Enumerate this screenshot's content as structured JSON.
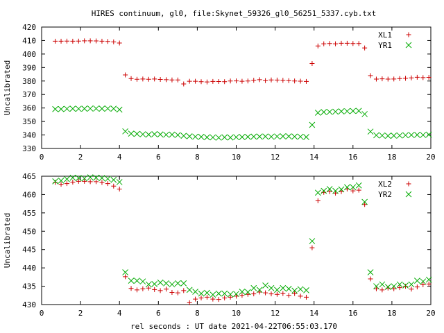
{
  "title": "HIRES continuum, gl0, file:Skynet_59326_gl0_56251_5337.cyb.txt",
  "xlabel": "rel seconds : UT date 2021-04-22T06:55:03.170",
  "chart_data": [
    {
      "type": "scatter",
      "ylabel": "Uncalibrated",
      "xlim": [
        0,
        20
      ],
      "ylim": [
        330,
        420
      ],
      "xticks": [
        0,
        2,
        4,
        6,
        8,
        10,
        12,
        14,
        16,
        18,
        20
      ],
      "yticks": [
        330,
        340,
        350,
        360,
        370,
        380,
        390,
        400,
        410,
        420
      ],
      "x": [
        0.7,
        1.0,
        1.3,
        1.6,
        1.9,
        2.2,
        2.5,
        2.8,
        3.1,
        3.4,
        3.7,
        4.0,
        4.3,
        4.6,
        4.9,
        5.2,
        5.5,
        5.8,
        6.1,
        6.4,
        6.7,
        7.0,
        7.3,
        7.6,
        7.9,
        8.2,
        8.5,
        8.8,
        9.1,
        9.4,
        9.7,
        10.0,
        10.3,
        10.6,
        10.9,
        11.2,
        11.5,
        11.8,
        12.1,
        12.4,
        12.7,
        13.0,
        13.3,
        13.6,
        13.9,
        14.2,
        14.5,
        14.8,
        15.1,
        15.4,
        15.7,
        16.0,
        16.3,
        16.6,
        16.9,
        17.2,
        17.5,
        17.8,
        18.1,
        18.4,
        18.7,
        19.0,
        19.3,
        19.6,
        19.9
      ],
      "series": [
        {
          "name": "XL1",
          "marker": "plus",
          "color": "#cc0000",
          "values": [
            409.5,
            409.5,
            409.6,
            409.5,
            409.6,
            409.8,
            409.8,
            409.7,
            409.5,
            409.3,
            409.0,
            408.2,
            384.5,
            381.8,
            381.3,
            381.5,
            381.3,
            381.5,
            381.2,
            381.0,
            380.8,
            380.8,
            377.8,
            379.8,
            379.8,
            379.5,
            379.3,
            379.7,
            379.6,
            379.5,
            380.0,
            380.1,
            379.8,
            380.0,
            380.5,
            381.0,
            380.3,
            380.8,
            380.7,
            380.5,
            380.3,
            380.0,
            379.9,
            379.7,
            393.0,
            406.0,
            407.6,
            407.8,
            407.6,
            408.0,
            408.0,
            407.8,
            407.8,
            404.5,
            384.0,
            381.4,
            381.6,
            381.4,
            381.5,
            381.8,
            382.0,
            382.3,
            382.8,
            382.5,
            382.7
          ]
        },
        {
          "name": "YR1",
          "marker": "cross",
          "color": "#00aa00",
          "values": [
            359.2,
            359.2,
            359.4,
            359.5,
            359.4,
            359.5,
            359.6,
            359.6,
            359.5,
            359.6,
            359.5,
            358.8,
            342.7,
            341.0,
            340.8,
            340.5,
            340.3,
            340.6,
            340.4,
            340.2,
            340.3,
            340.0,
            339.4,
            339.0,
            338.7,
            338.6,
            338.3,
            338.2,
            338.0,
            338.3,
            338.1,
            338.4,
            338.5,
            338.6,
            338.8,
            338.8,
            338.9,
            338.7,
            338.9,
            339.0,
            339.0,
            338.8,
            338.7,
            338.5,
            347.5,
            356.5,
            357.0,
            357.1,
            357.3,
            357.5,
            357.6,
            357.8,
            357.9,
            355.5,
            342.5,
            339.8,
            339.6,
            339.4,
            339.5,
            339.6,
            339.8,
            340.0,
            340.1,
            340.0,
            340.3
          ]
        }
      ]
    },
    {
      "type": "scatter",
      "ylabel": "Uncalibrated",
      "xlim": [
        0,
        20
      ],
      "ylim": [
        430,
        465
      ],
      "xticks": [
        0,
        2,
        4,
        6,
        8,
        10,
        12,
        14,
        16,
        18,
        20
      ],
      "yticks": [
        430,
        435,
        440,
        445,
        450,
        455,
        460,
        465
      ],
      "x": [
        0.7,
        1.0,
        1.3,
        1.6,
        1.9,
        2.2,
        2.5,
        2.8,
        3.1,
        3.4,
        3.7,
        4.0,
        4.3,
        4.6,
        4.9,
        5.2,
        5.5,
        5.8,
        6.1,
        6.4,
        6.7,
        7.0,
        7.3,
        7.6,
        7.9,
        8.2,
        8.5,
        8.8,
        9.1,
        9.4,
        9.7,
        10.0,
        10.3,
        10.6,
        10.9,
        11.2,
        11.5,
        11.8,
        12.1,
        12.4,
        12.7,
        13.0,
        13.3,
        13.6,
        13.9,
        14.2,
        14.5,
        14.8,
        15.1,
        15.4,
        15.7,
        16.0,
        16.3,
        16.6,
        16.9,
        17.2,
        17.5,
        17.8,
        18.1,
        18.4,
        18.7,
        19.0,
        19.3,
        19.6,
        19.9
      ],
      "series": [
        {
          "name": "XL2",
          "marker": "plus",
          "color": "#cc0000",
          "values": [
            463.3,
            462.8,
            463.0,
            463.4,
            463.6,
            463.6,
            463.5,
            463.5,
            463.3,
            463.0,
            462.3,
            461.5,
            437.6,
            434.4,
            434.0,
            434.3,
            434.5,
            434.1,
            433.8,
            434.2,
            433.3,
            433.2,
            433.8,
            430.5,
            431.5,
            431.8,
            432.0,
            431.5,
            431.4,
            431.8,
            432.0,
            432.3,
            432.5,
            432.8,
            432.9,
            433.4,
            433.2,
            432.9,
            432.8,
            433.0,
            432.5,
            433.0,
            432.3,
            432.0,
            445.5,
            458.3,
            460.6,
            460.8,
            460.4,
            460.8,
            461.5,
            461.0,
            461.2,
            457.3,
            437.0,
            434.3,
            434.0,
            434.5,
            434.3,
            434.6,
            435.0,
            434.2,
            434.8,
            435.4,
            435.6
          ]
        },
        {
          "name": "YR2",
          "marker": "cross",
          "color": "#00aa00",
          "values": [
            463.6,
            463.8,
            464.2,
            464.6,
            464.5,
            464.4,
            464.7,
            464.6,
            464.5,
            464.3,
            464.0,
            463.4,
            438.8,
            436.5,
            436.5,
            436.3,
            435.5,
            435.6,
            436.0,
            435.8,
            435.5,
            435.8,
            435.8,
            434.0,
            433.5,
            433.0,
            433.2,
            432.7,
            433.0,
            433.0,
            432.8,
            432.9,
            433.5,
            433.4,
            434.5,
            434.0,
            435.2,
            434.5,
            434.0,
            434.5,
            434.3,
            433.8,
            434.2,
            433.9,
            447.3,
            460.5,
            461.0,
            461.5,
            461.0,
            461.4,
            462.0,
            462.0,
            462.5,
            458.0,
            438.8,
            435.0,
            435.5,
            434.8,
            435.0,
            435.5,
            435.2,
            435.5,
            436.5,
            436.3,
            436.8
          ]
        }
      ]
    }
  ]
}
